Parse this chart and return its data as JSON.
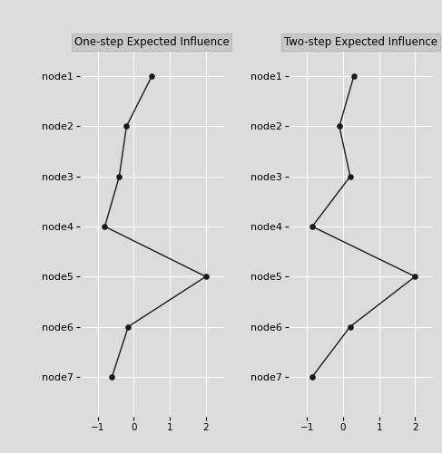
{
  "nodes": [
    "node1",
    "node2",
    "node3",
    "node4",
    "node5",
    "node6",
    "node7"
  ],
  "one_step": [
    0.5,
    -0.2,
    -0.4,
    -0.8,
    2.0,
    -0.15,
    -0.6
  ],
  "two_step": [
    0.3,
    -0.1,
    0.2,
    -0.85,
    2.0,
    0.2,
    -0.85
  ],
  "title_left": "One-step Expected Influence",
  "title_right": "Two-step Expected Influence",
  "xlim": [
    -1.5,
    2.5
  ],
  "xticks": [
    -1,
    0,
    1,
    2
  ],
  "bg_color": "#dcdcdc",
  "fig_color": "#dcdcdc",
  "line_color": "#1a1a1a",
  "dot_color": "#1a1a1a",
  "grid_color": "#ffffff",
  "title_fontsize": 8.5,
  "label_fontsize": 8,
  "tick_fontsize": 7.5,
  "strip_bg": "#d0d0d0",
  "strip_text_color": "#333333"
}
